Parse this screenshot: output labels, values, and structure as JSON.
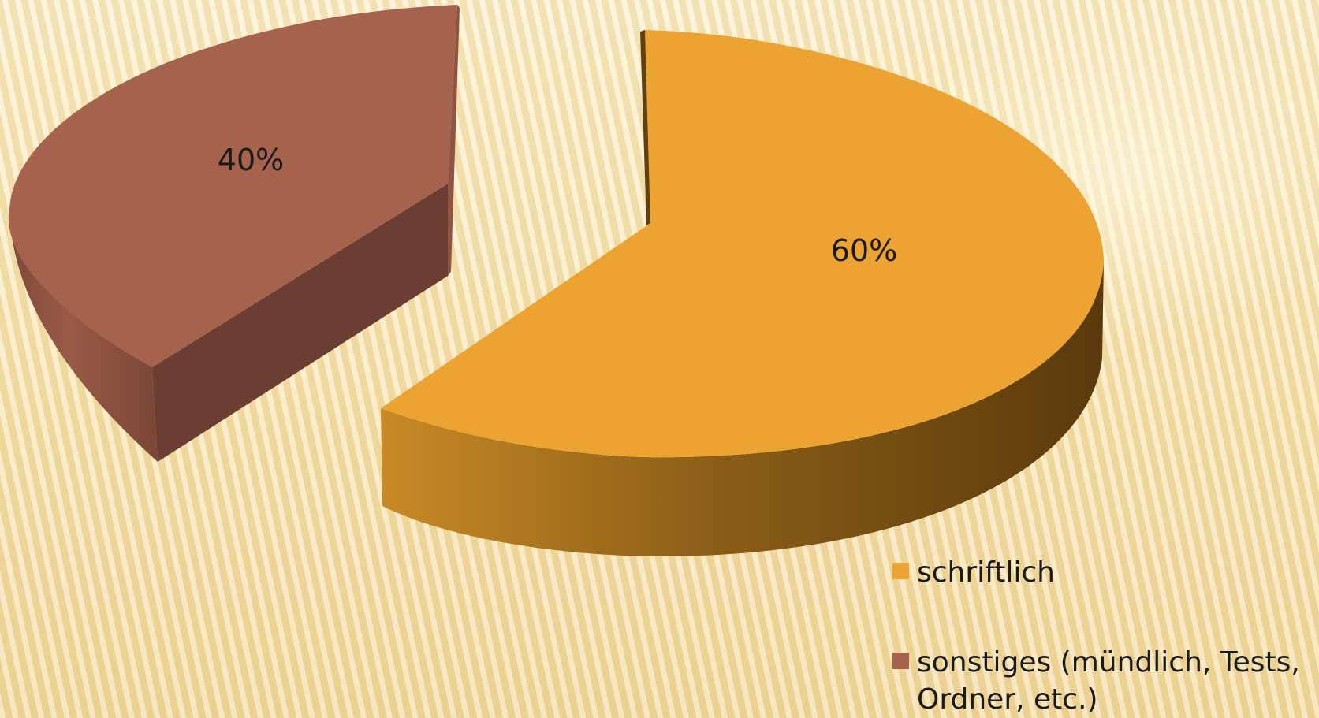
{
  "chart_data": {
    "type": "pie",
    "three_d": true,
    "exploded": true,
    "slices": [
      {
        "label": "schriftlich",
        "value": 60,
        "data_label": "60%",
        "color": "#eca331",
        "side_dark": "#60400f",
        "side_light": "#b27d22"
      },
      {
        "label": "sonstiges (mündlich, Tests, Ordner, etc.)",
        "value": 40,
        "data_label": "40%",
        "color": "#a5624d",
        "side_dark": "#6b3d33",
        "side_light": "#8f5442"
      }
    ],
    "legend": {
      "placement": "bottom-right",
      "items": [
        {
          "lines": [
            "schriftlich"
          ],
          "color": "#eca331"
        },
        {
          "lines": [
            "sonstiges (mündlich, Tests,",
            "Ordner, etc.)"
          ],
          "color": "#a5624d"
        }
      ]
    }
  }
}
